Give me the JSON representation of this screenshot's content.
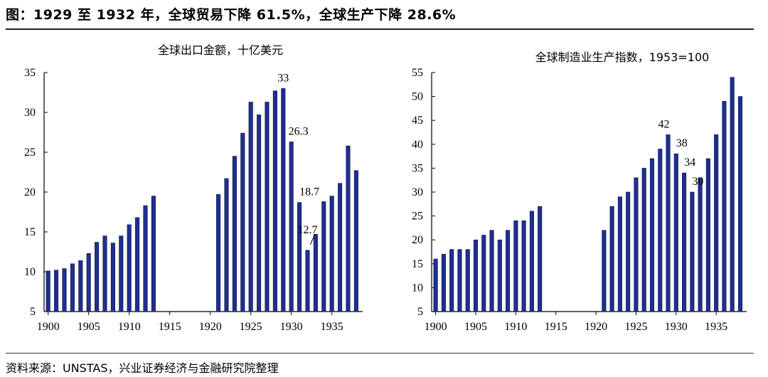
{
  "figure_title": "图：1929 至 1932 年，全球贸易下降 61.5%，全球生产下降 28.6%",
  "source_note": "资料来源：UNSTAS，兴业证券经济与金融研究院整理",
  "colors": {
    "bar": "#1f2f8f",
    "bar_edge": "#0d1650",
    "axis": "#000000"
  },
  "chart_data": [
    {
      "type": "bar",
      "title": "全球出口金额，十亿美元",
      "xlabel": "",
      "ylabel": "",
      "ylim": [
        5,
        35
      ],
      "yticks": [
        5,
        10,
        15,
        20,
        25,
        30,
        35
      ],
      "xlim": [
        1899.5,
        1938.8
      ],
      "xticks": [
        1900,
        1905,
        1910,
        1915,
        1920,
        1925,
        1930,
        1935
      ],
      "grid": false,
      "x": [
        1900,
        1901,
        1902,
        1903,
        1904,
        1905,
        1906,
        1907,
        1908,
        1909,
        1910,
        1911,
        1912,
        1913,
        1921,
        1922,
        1923,
        1924,
        1925,
        1926,
        1927,
        1928,
        1929,
        1930,
        1931,
        1932,
        1933,
        1934,
        1935,
        1936,
        1937,
        1938
      ],
      "values": [
        10.1,
        10.2,
        10.4,
        11.0,
        11.4,
        12.3,
        13.7,
        14.5,
        13.6,
        14.5,
        15.9,
        16.8,
        18.3,
        19.5,
        19.7,
        21.7,
        24.5,
        27.4,
        31.3,
        29.7,
        31.3,
        32.7,
        33.0,
        26.3,
        18.7,
        12.7,
        14.7,
        18.8,
        19.5,
        21.1,
        25.8,
        22.7
      ],
      "annotations": [
        {
          "x": 1929,
          "y": 33.0,
          "text": "33"
        },
        {
          "x": 1930,
          "y": 26.3,
          "text": "26.3"
        },
        {
          "x": 1931,
          "y": 18.7,
          "text": "18.7"
        },
        {
          "x": 1932,
          "y": 12.7,
          "text": "12.7"
        }
      ]
    },
    {
      "type": "bar",
      "title": "全球制造业生产指数，1953=100",
      "xlabel": "",
      "ylabel": "",
      "ylim": [
        5,
        55
      ],
      "yticks": [
        5,
        10,
        15,
        20,
        25,
        30,
        35,
        40,
        45,
        50,
        55
      ],
      "xlim": [
        1899.5,
        1938.8
      ],
      "xticks": [
        1900,
        1905,
        1910,
        1915,
        1920,
        1925,
        1930,
        1935
      ],
      "grid": false,
      "x": [
        1900,
        1901,
        1902,
        1903,
        1904,
        1905,
        1906,
        1907,
        1908,
        1909,
        1910,
        1911,
        1912,
        1913,
        1921,
        1922,
        1923,
        1924,
        1925,
        1926,
        1927,
        1928,
        1929,
        1930,
        1931,
        1932,
        1933,
        1934,
        1935,
        1936,
        1937,
        1938
      ],
      "values": [
        16,
        17,
        18,
        18,
        18,
        20,
        21,
        22,
        20,
        22,
        24,
        24,
        26,
        27,
        22,
        27,
        29,
        30,
        33,
        35,
        37,
        39,
        42,
        38,
        34,
        30,
        33,
        37,
        42,
        49,
        54,
        50
      ],
      "annotations": [
        {
          "x": 1929,
          "y": 42,
          "text": "42"
        },
        {
          "x": 1930,
          "y": 38,
          "text": "38"
        },
        {
          "x": 1931,
          "y": 34,
          "text": "34"
        },
        {
          "x": 1932,
          "y": 30,
          "text": "30"
        }
      ]
    }
  ]
}
